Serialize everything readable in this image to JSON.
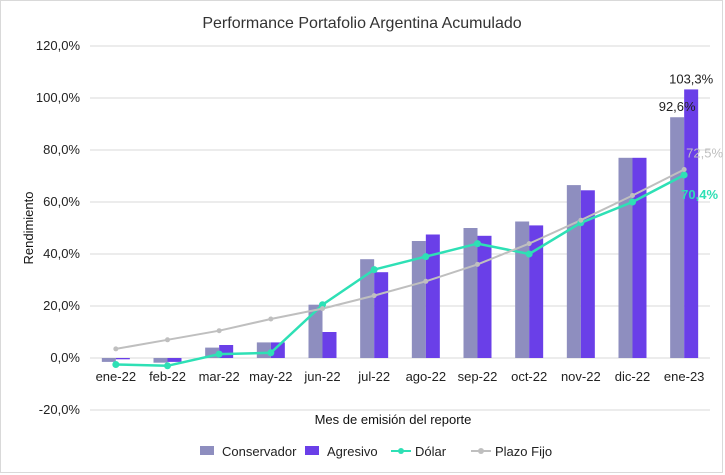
{
  "chart_data": {
    "type": "bar",
    "title": "Performance Portafolio Argentina Acumulado",
    "xlabel": "Mes de emisión del reporte",
    "ylabel": "Rendimiento",
    "ylim": [
      -20,
      120
    ],
    "yticks": [
      -20,
      0,
      20,
      40,
      60,
      80,
      100,
      120
    ],
    "ytick_labels": [
      "-20,0%",
      "0,0%",
      "20,0%",
      "40,0%",
      "60,0%",
      "80,0%",
      "100,0%",
      "120,0%"
    ],
    "grid": true,
    "legend_position": "bottom",
    "categories": [
      "ene-22",
      "feb-22",
      "mar-22",
      "may-22",
      "jun-22",
      "jul-22",
      "ago-22",
      "sep-22",
      "oct-22",
      "nov-22",
      "dic-22",
      "ene-23"
    ],
    "series": [
      {
        "name": "Conservador",
        "kind": "bar",
        "color": "#8e8ebf",
        "values": [
          -1.5,
          -1.8,
          4.0,
          6.0,
          20.5,
          38.0,
          45.0,
          50.0,
          52.5,
          66.5,
          77.0,
          92.6
        ]
      },
      {
        "name": "Agresivo",
        "kind": "bar",
        "color": "#6a3fe8",
        "values": [
          -0.5,
          -1.5,
          5.0,
          6.0,
          10.0,
          33.0,
          47.5,
          47.0,
          51.0,
          64.5,
          77.0,
          103.3
        ]
      },
      {
        "name": "Dólar",
        "kind": "line",
        "color": "#2ee0b5",
        "values": [
          -2.5,
          -3.0,
          1.5,
          2.0,
          20.5,
          34.0,
          39.0,
          44.0,
          40.0,
          52.0,
          60.0,
          70.4
        ]
      },
      {
        "name": "Plazo Fijo",
        "kind": "line",
        "color": "#bfbfbf",
        "values": [
          3.5,
          7.0,
          10.5,
          15.0,
          19.0,
          24.0,
          29.5,
          36.0,
          44.0,
          53.0,
          62.5,
          72.5
        ]
      }
    ],
    "data_labels": [
      {
        "series": "Conservador",
        "category": "ene-23",
        "text": "92,6%"
      },
      {
        "series": "Agresivo",
        "category": "ene-23",
        "text": "103,3%"
      },
      {
        "series": "Plazo Fijo",
        "category": "ene-23",
        "text": "72,5%"
      },
      {
        "series": "Dólar",
        "category": "ene-23",
        "text": "70,4%"
      }
    ]
  }
}
